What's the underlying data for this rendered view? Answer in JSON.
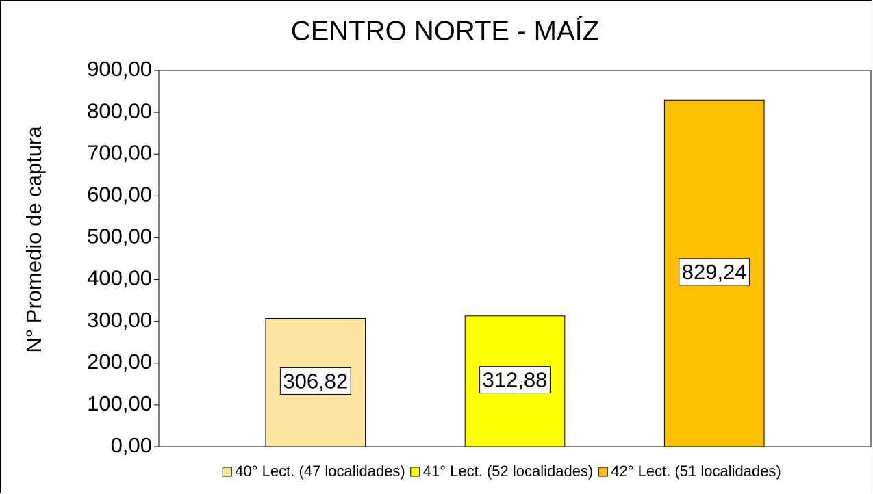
{
  "chart_data": {
    "type": "bar",
    "title": "CENTRO NORTE - MAÍZ",
    "y_label": "N° Promedio de captura",
    "categories": [
      null
    ],
    "series": [
      {
        "name": "40° Lect. (47 localidades)",
        "color": "#fde59f",
        "values": [
          306.82
        ],
        "value_labels": [
          "306,82"
        ]
      },
      {
        "name": "41° Lect. (52 localidades)",
        "color": "#ffff00",
        "values": [
          312.88
        ],
        "value_labels": [
          "312,88"
        ]
      },
      {
        "name": "42° Lect. (51 localidades)",
        "color": "#ffc000",
        "values": [
          829.24
        ],
        "value_labels": [
          "829,24"
        ]
      }
    ],
    "ylim": [
      0,
      900
    ],
    "yticks": [
      {
        "value": 0,
        "label": "0,00"
      },
      {
        "value": 100,
        "label": "100,00"
      },
      {
        "value": 200,
        "label": "200,00"
      },
      {
        "value": 300,
        "label": "300,00"
      },
      {
        "value": 400,
        "label": "400,00"
      },
      {
        "value": 500,
        "label": "500,00"
      },
      {
        "value": 600,
        "label": "600,00"
      },
      {
        "value": 700,
        "label": "700,00"
      },
      {
        "value": 800,
        "label": "800,00"
      },
      {
        "value": 900,
        "label": "900,00"
      }
    ],
    "legend": "bottom"
  }
}
